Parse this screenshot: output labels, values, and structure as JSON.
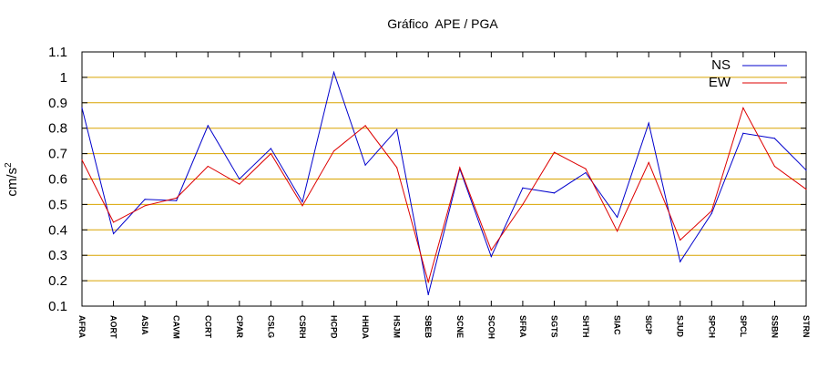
{
  "chart_data": {
    "type": "line",
    "title": "Gráfico  APE / PGA",
    "xlabel": "",
    "ylabel": "cm/s",
    "ylabel_superscript": "2",
    "ylim": [
      0.1,
      1.1
    ],
    "yticks": [
      "0.1",
      "0.2",
      "0.3",
      "0.4",
      "0.5",
      "0.6",
      "0.7",
      "0.8",
      "0.9",
      "1",
      "1.1"
    ],
    "ytick_values": [
      0.1,
      0.2,
      0.3,
      0.4,
      0.5,
      0.6,
      0.7,
      0.8,
      0.9,
      1.0,
      1.1
    ],
    "grid": "horizontal",
    "legend": "top-right",
    "categories": [
      "AFRA",
      "AORT",
      "ASIA",
      "CAVM",
      "CCRT",
      "CPAR",
      "CSLG",
      "CSRH",
      "HCPD",
      "HHDA",
      "HSJM",
      "SBEB",
      "SCNE",
      "SCOH",
      "SFRA",
      "SGTS",
      "SHTH",
      "SIAC",
      "SICP",
      "SJUD",
      "SPCH",
      "SPCL",
      "SSBN",
      "STRN"
    ],
    "series": [
      {
        "name": "NS",
        "color": "#0000cc",
        "values": [
          0.88,
          0.385,
          0.52,
          0.515,
          0.81,
          0.6,
          0.72,
          0.51,
          1.02,
          0.655,
          0.795,
          0.145,
          0.64,
          0.295,
          0.565,
          0.545,
          0.625,
          0.45,
          0.82,
          0.275,
          0.465,
          0.78,
          0.76,
          0.635
        ]
      },
      {
        "name": "EW",
        "color": "#dd0000",
        "values": [
          0.675,
          0.43,
          0.495,
          0.525,
          0.65,
          0.58,
          0.7,
          0.495,
          0.71,
          0.81,
          0.645,
          0.195,
          0.645,
          0.32,
          0.5,
          0.705,
          0.64,
          0.395,
          0.665,
          0.36,
          0.475,
          0.88,
          0.65,
          0.56
        ]
      }
    ],
    "grid_color": "#d9a400"
  }
}
